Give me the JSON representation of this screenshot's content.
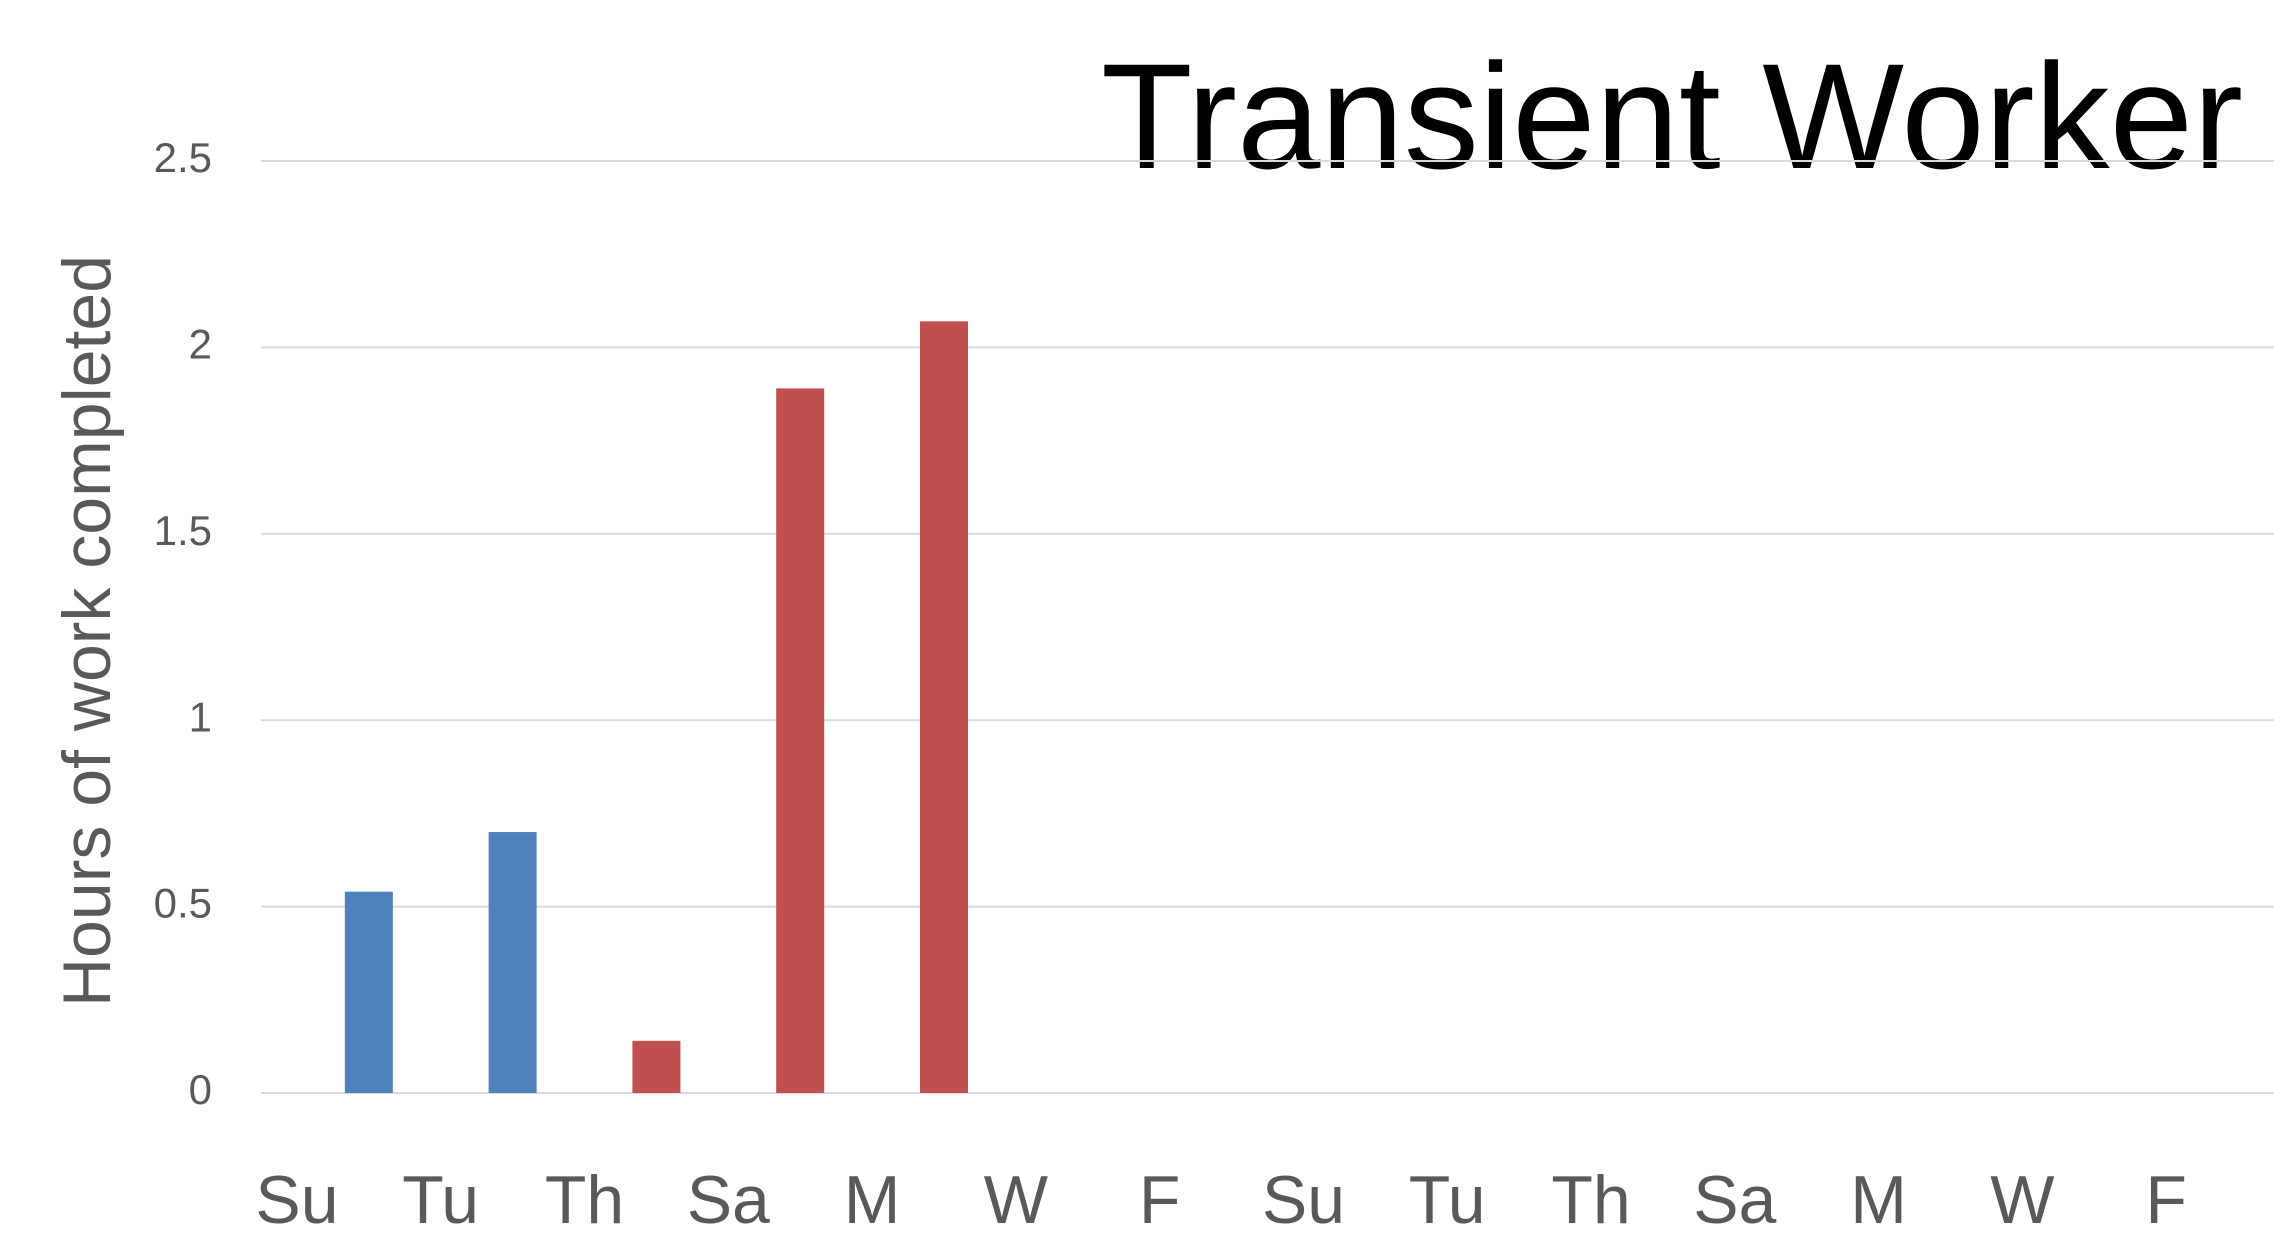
{
  "chart_data": {
    "type": "bar",
    "title": "Transient Worker",
    "y_label": "Hours of work completed",
    "categories": [
      "Su",
      null,
      "Tu",
      null,
      "Th",
      null,
      "Sa",
      null,
      "M",
      null,
      "W",
      null,
      "F",
      null,
      "Su",
      null,
      "Tu",
      null,
      "Th",
      null,
      "Sa",
      null,
      "M",
      null,
      "W",
      null,
      "F",
      null
    ],
    "series": [
      {
        "color": "#4f81bd",
        "values": [
          null,
          0.54,
          null,
          0.7,
          null,
          null,
          null,
          null,
          null,
          null,
          null,
          null,
          null,
          null,
          null,
          null,
          null,
          null,
          null,
          null,
          null,
          null,
          null,
          null,
          null,
          null,
          null,
          null
        ]
      },
      {
        "color": "#c0504d",
        "values": [
          null,
          null,
          null,
          null,
          null,
          0.14,
          null,
          1.89,
          null,
          2.07,
          null,
          null,
          null,
          null,
          null,
          null,
          null,
          null,
          null,
          null,
          null,
          null,
          null,
          null,
          null,
          null,
          null,
          null
        ]
      }
    ],
    "ylim": [
      0,
      2.5
    ],
    "yticks": [
      0,
      0.5,
      1,
      1.5,
      2,
      2.5
    ],
    "grid": true
  }
}
